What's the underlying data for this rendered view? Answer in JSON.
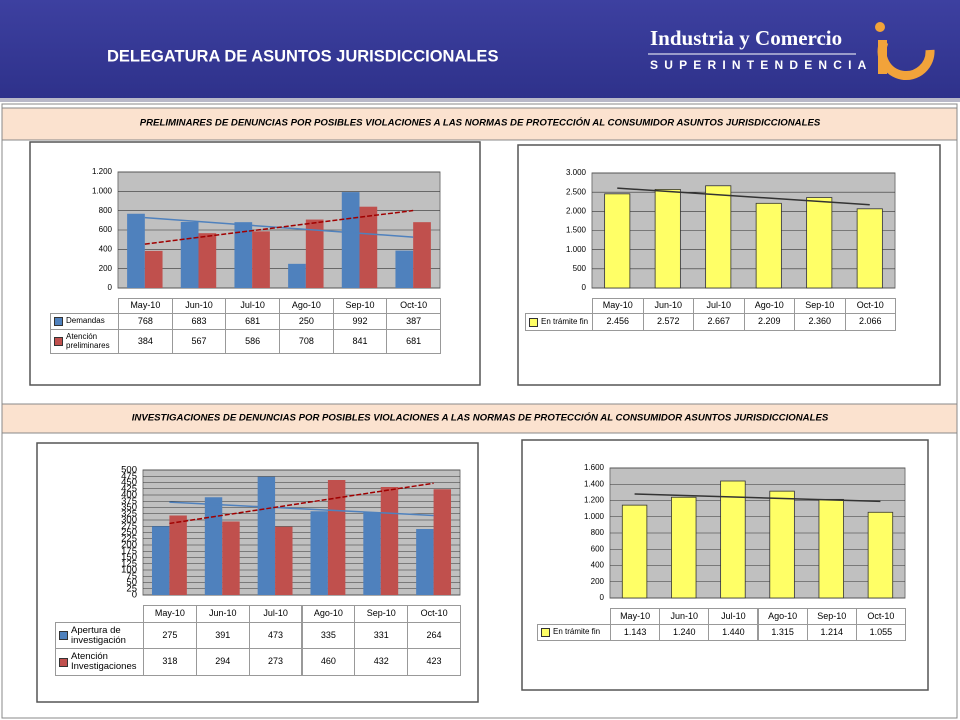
{
  "header": {
    "title": "DELEGATURA DE ASUNTOS JURISDICCIONALES",
    "logo_line1": "Industria y Comercio",
    "logo_line2": "SUPERINTENDENCIA"
  },
  "sections": [
    "PRELIMINARES DE  DENUNCIAS POR POSIBLES VIOLACIONES A LAS NORMAS DE PROTECCIÓN AL CONSUMIDOR ASUNTOS JURISDICCIONALES",
    "INVESTIGACIONES DE  DENUNCIAS POR POSIBLES VIOLACIONES A LAS NORMAS DE PROTECCIÓN AL CONSUMIDOR ASUNTOS JURISDICCIONALES"
  ],
  "chart_data": [
    {
      "type": "bar",
      "categories": [
        "May-10",
        "Jun-10",
        "Jul-10",
        "Ago-10",
        "Sep-10",
        "Oct-10"
      ],
      "series": [
        {
          "name": "Demandas",
          "color": "#4f81bd",
          "values": [
            768,
            683,
            681,
            250,
            992,
            387
          ],
          "trendline": {
            "color": "#4f81bd",
            "dashed": false
          }
        },
        {
          "name": "Atención preliminares",
          "color": "#c0504d",
          "values": [
            384,
            567,
            586,
            708,
            841,
            681
          ],
          "trendline": {
            "color": "#a00000",
            "dashed": true
          }
        }
      ],
      "ylim": [
        0,
        1200
      ],
      "yticks": [
        0,
        200,
        400,
        600,
        800,
        {
          "value": 1000,
          "label": "1.000"
        },
        {
          "value": 1200,
          "label": "1.200"
        }
      ],
      "grid": true
    },
    {
      "type": "bar",
      "categories": [
        "May-10",
        "Jun-10",
        "Jul-10",
        "Ago-10",
        "Sep-10",
        "Oct-10"
      ],
      "series": [
        {
          "name": "En trámite fin",
          "color": "#ffff66",
          "values": [
            2456,
            2572,
            2667,
            2209,
            2360,
            2066
          ],
          "value_labels": [
            "2.456",
            "2.572",
            "2.667",
            "2.209",
            "2.360",
            "2.066"
          ],
          "trendline": {
            "color": "#333333",
            "dashed": false
          }
        }
      ],
      "ylim": [
        0,
        3000
      ],
      "yticks": [
        0,
        500,
        {
          "value": 1000,
          "label": "1.000"
        },
        {
          "value": 1500,
          "label": "1.500"
        },
        {
          "value": 2000,
          "label": "2.000"
        },
        {
          "value": 2500,
          "label": "2.500"
        },
        {
          "value": 3000,
          "label": "3.000"
        }
      ],
      "grid": true
    },
    {
      "type": "bar",
      "categories": [
        "May-10",
        "Jun-10",
        "Jul-10",
        "Ago-10",
        "Sep-10",
        "Oct-10"
      ],
      "series": [
        {
          "name": "Apertura de investigación",
          "color": "#4f81bd",
          "values": [
            275,
            391,
            473,
            335,
            331,
            264
          ],
          "trendline": {
            "color": "#4f81bd",
            "dashed": false
          }
        },
        {
          "name": "Atención Investigaciones",
          "color": "#c0504d",
          "values": [
            318,
            294,
            273,
            460,
            432,
            423
          ],
          "trendline": {
            "color": "#a00000",
            "dashed": true
          }
        }
      ],
      "ylim": [
        0,
        500
      ],
      "yticks": [
        0,
        25,
        50,
        75,
        100,
        125,
        150,
        175,
        200,
        225,
        250,
        275,
        300,
        325,
        350,
        375,
        400,
        425,
        450,
        475,
        500
      ],
      "grid": true
    },
    {
      "type": "bar",
      "categories": [
        "May-10",
        "Jun-10",
        "Jul-10",
        "Ago-10",
        "Sep-10",
        "Oct-10"
      ],
      "series": [
        {
          "name": "En trámite fin",
          "color": "#ffff66",
          "values": [
            1143,
            1240,
            1440,
            1315,
            1214,
            1055
          ],
          "value_labels": [
            "1.143",
            "1.240",
            "1.440",
            "1.315",
            "1.214",
            "1.055"
          ],
          "trendline": {
            "color": "#333333",
            "dashed": false
          }
        }
      ],
      "ylim": [
        0,
        1600
      ],
      "yticks": [
        0,
        200,
        400,
        600,
        800,
        {
          "value": 1000,
          "label": "1.000"
        },
        {
          "value": 1200,
          "label": "1.200"
        },
        {
          "value": 1400,
          "label": "1.400"
        },
        {
          "value": 1600,
          "label": "1.600"
        }
      ],
      "grid": true
    }
  ]
}
